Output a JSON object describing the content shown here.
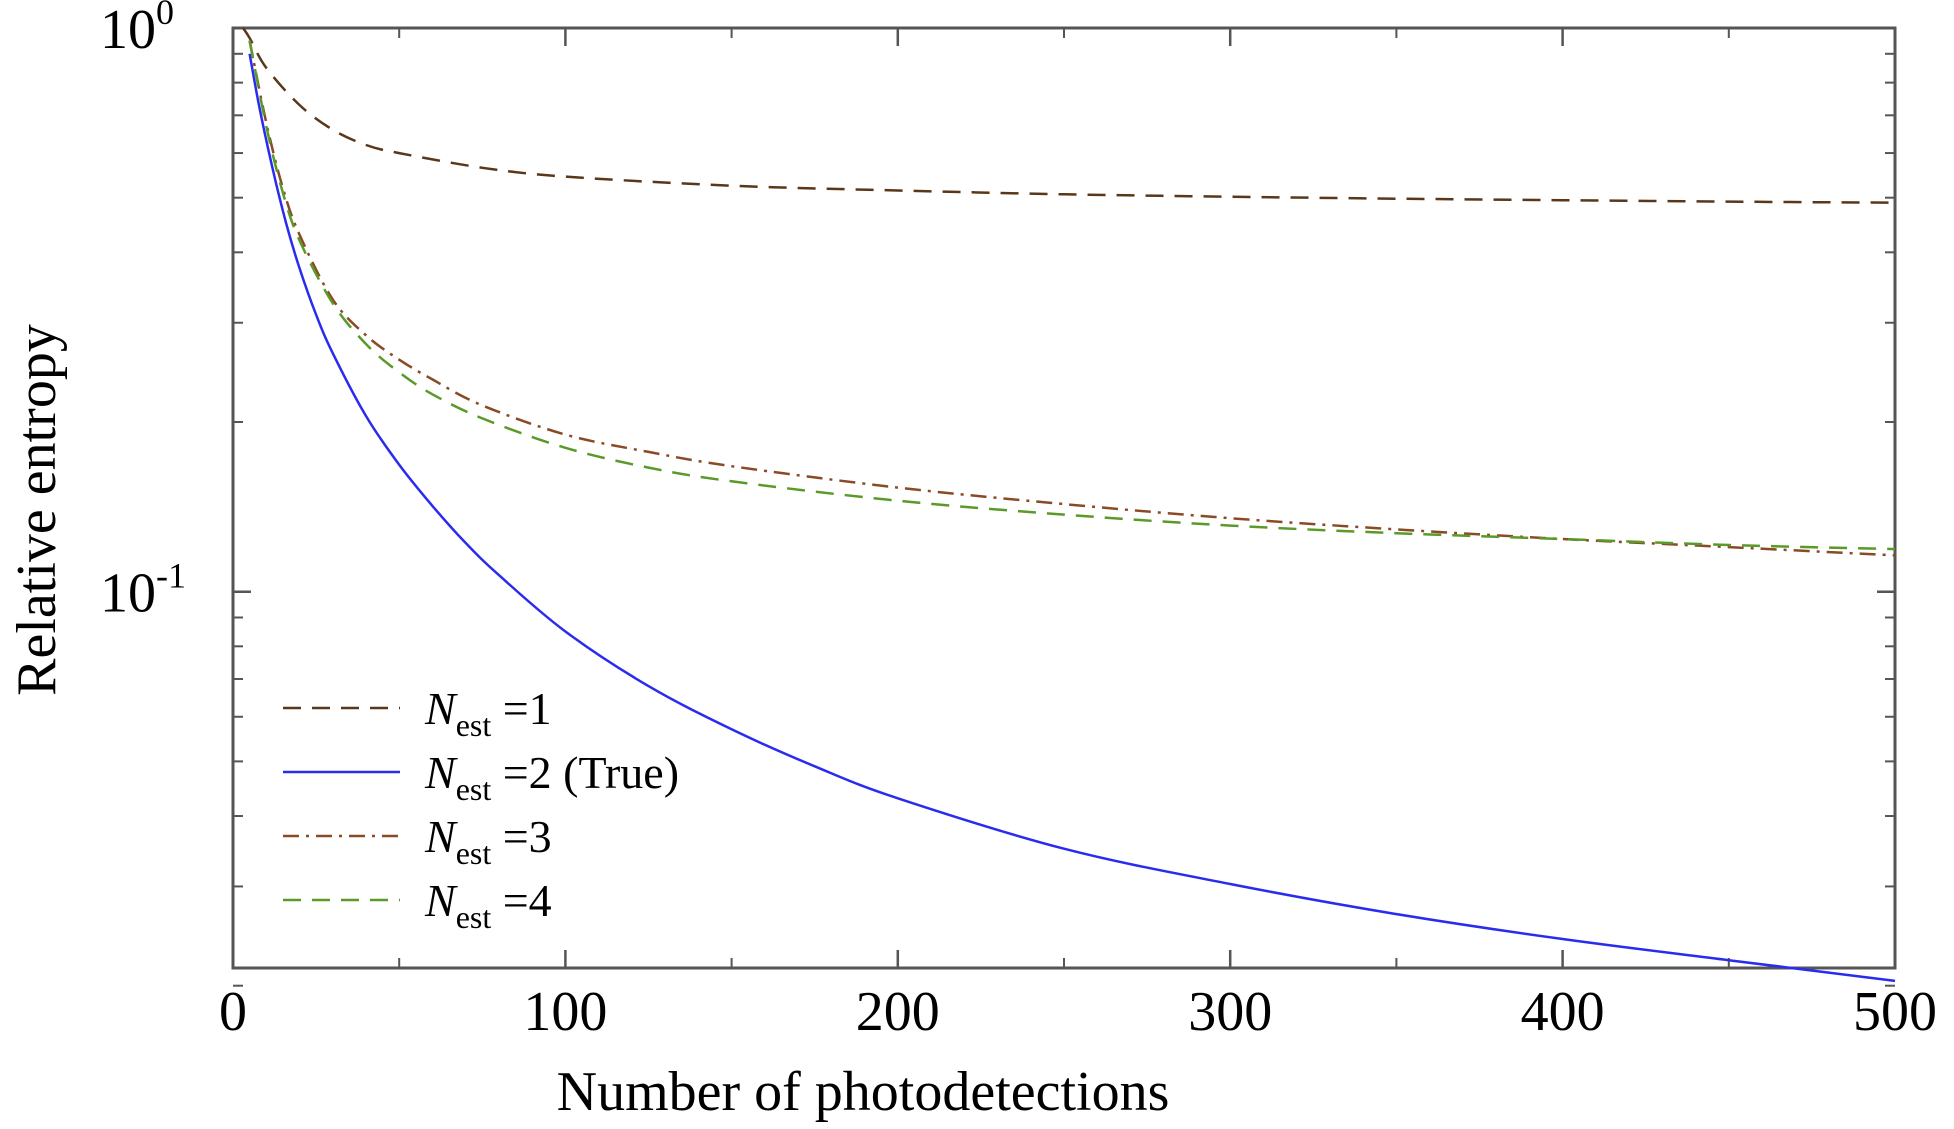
{
  "chart_data": {
    "type": "line",
    "xlabel": "Number of photodetections",
    "ylabel": "Relative entropy",
    "xlim": [
      0,
      500
    ],
    "ylim": [
      0.0215,
      1.0
    ],
    "yscale": "log",
    "grid": false,
    "legend_position": "bottom-left",
    "x_ticks": [
      {
        "value": 0,
        "label": "0"
      },
      {
        "value": 100,
        "label": "100"
      },
      {
        "value": 200,
        "label": "200"
      },
      {
        "value": 300,
        "label": "300"
      },
      {
        "value": 400,
        "label": "400"
      },
      {
        "value": 500,
        "label": "500"
      }
    ],
    "y_major_ticks": [
      {
        "value": 1.0,
        "base": "10",
        "exp": "0"
      },
      {
        "value": 0.1,
        "base": "10",
        "exp": "-1"
      }
    ],
    "y_minor_ticks": [
      0.9,
      0.8,
      0.7,
      0.6,
      0.5,
      0.4,
      0.3,
      0.2,
      0.09,
      0.08,
      0.07,
      0.06,
      0.05,
      0.04,
      0.03,
      0.02
    ],
    "x_minor_ticks": [
      50,
      150,
      250,
      350,
      450
    ],
    "series": [
      {
        "name_main": "N",
        "name_sub": "est",
        "name_rest": " =1",
        "color": "#5a3719",
        "style": "dashed",
        "x": [
          3,
          5,
          10,
          20,
          30,
          40,
          50,
          75,
          100,
          150,
          200,
          250,
          300,
          350,
          400,
          450,
          500
        ],
        "y": [
          1.0,
          0.96,
          0.85,
          0.73,
          0.66,
          0.62,
          0.6,
          0.565,
          0.545,
          0.525,
          0.515,
          0.507,
          0.502,
          0.498,
          0.495,
          0.492,
          0.49
        ]
      },
      {
        "name_main": "N",
        "name_sub": "est",
        "name_rest": " =2 (True)",
        "color": "#2b2bf0",
        "style": "solid",
        "x": [
          5,
          8,
          12,
          16,
          20,
          25,
          30,
          40,
          50,
          60,
          70,
          80,
          100,
          125,
          150,
          175,
          200,
          250,
          300,
          350,
          400,
          450,
          500
        ],
        "y": [
          0.9,
          0.72,
          0.56,
          0.45,
          0.375,
          0.31,
          0.265,
          0.205,
          0.168,
          0.142,
          0.122,
          0.107,
          0.085,
          0.068,
          0.057,
          0.049,
          0.043,
          0.035,
          0.0303,
          0.0268,
          0.0242,
          0.0222,
          0.0204
        ]
      },
      {
        "name_main": "N",
        "name_sub": "est",
        "name_rest": " =3",
        "color": "#8b4a26",
        "style": "dashdot",
        "x": [
          5,
          10,
          15,
          20,
          30,
          40,
          50,
          60,
          75,
          100,
          125,
          150,
          200,
          250,
          300,
          350,
          400,
          450,
          500
        ],
        "y": [
          0.95,
          0.68,
          0.52,
          0.43,
          0.33,
          0.285,
          0.258,
          0.238,
          0.214,
          0.19,
          0.177,
          0.167,
          0.153,
          0.143,
          0.135,
          0.129,
          0.124,
          0.12,
          0.116
        ]
      },
      {
        "name_main": "N",
        "name_sub": "est",
        "name_rest": " =4",
        "color": "#5a9a28",
        "style": "dashed",
        "x": [
          5,
          10,
          15,
          20,
          30,
          40,
          50,
          60,
          75,
          100,
          125,
          150,
          200,
          250,
          300,
          350,
          400,
          450,
          500
        ],
        "y": [
          0.95,
          0.67,
          0.51,
          0.42,
          0.325,
          0.275,
          0.245,
          0.224,
          0.203,
          0.18,
          0.166,
          0.157,
          0.145,
          0.137,
          0.131,
          0.127,
          0.124,
          0.121,
          0.119
        ]
      }
    ]
  }
}
